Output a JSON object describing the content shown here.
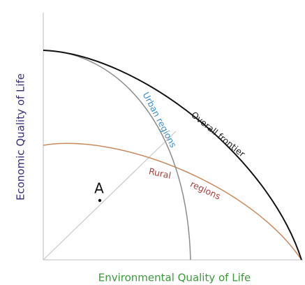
{
  "axes": {
    "x_label": "Environmental Quality of Life",
    "y_label": "Economic Quality of Life"
  },
  "curves": {
    "overall": {
      "label": "Overall frontier"
    },
    "urban": {
      "label": "Urban regions"
    },
    "rural": {
      "labels": [
        "Rural",
        "regions"
      ]
    }
  },
  "point": {
    "label": "A"
  }
}
